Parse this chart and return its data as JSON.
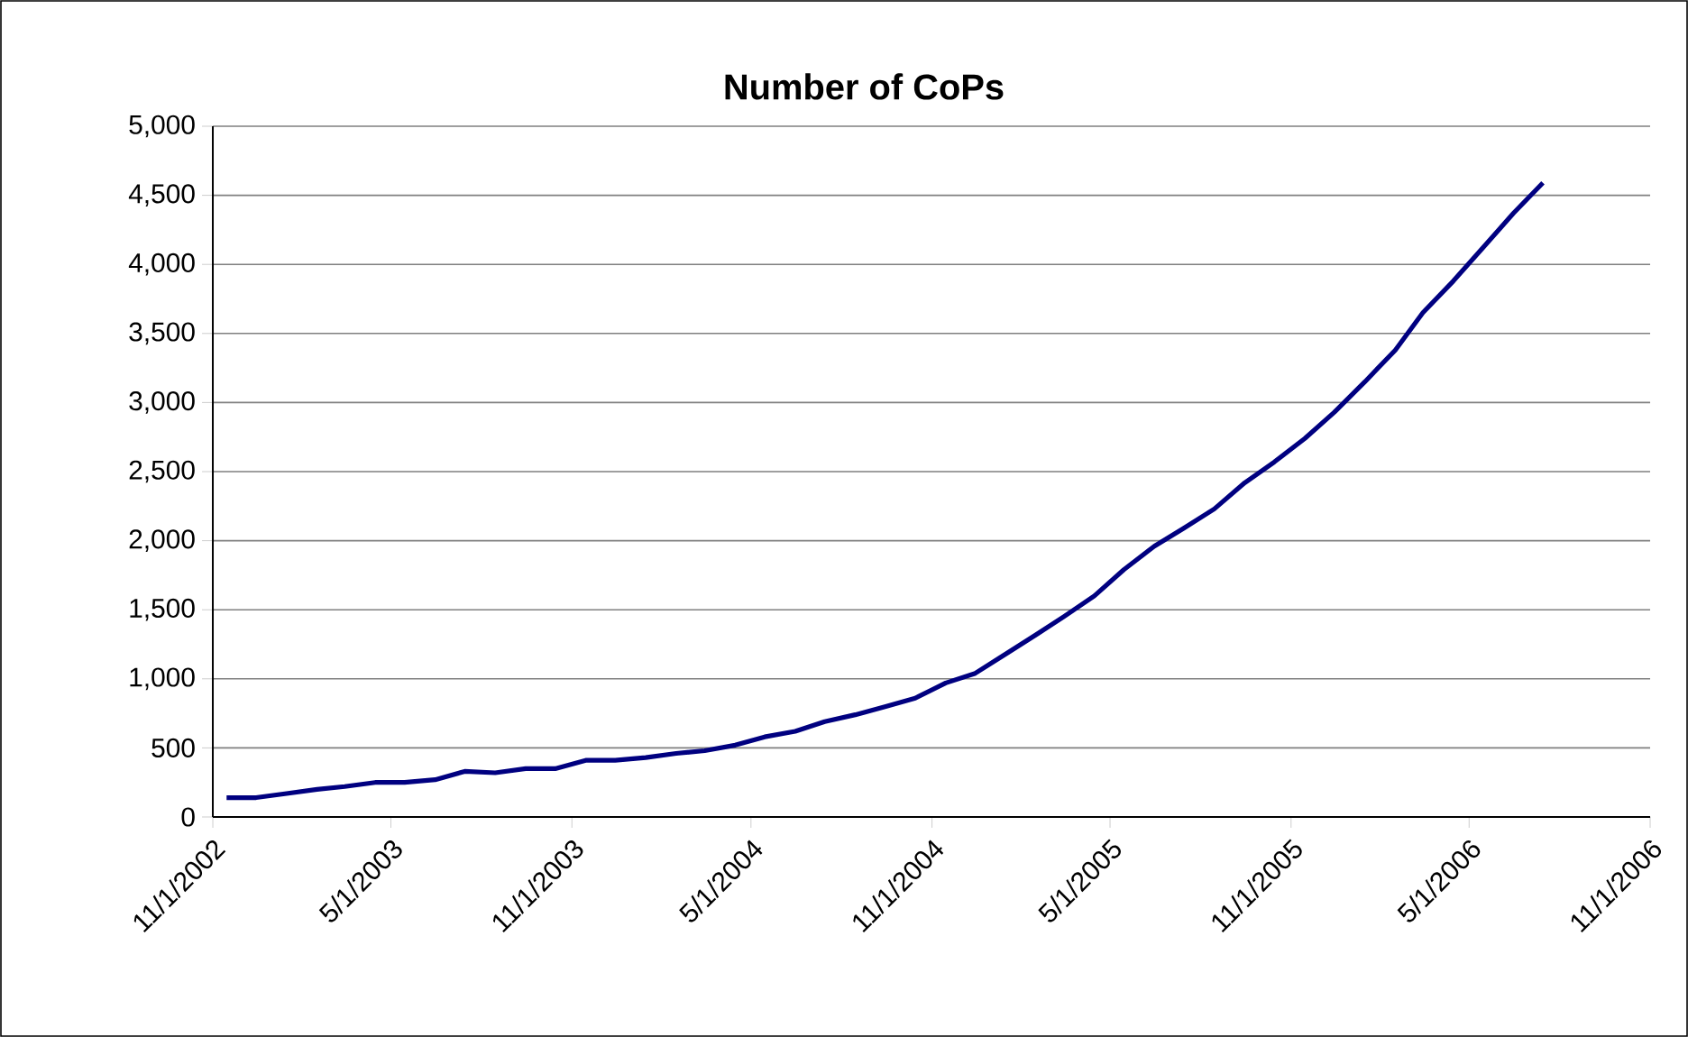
{
  "chart_data": {
    "type": "line",
    "title": "Number of CoPs",
    "x": [
      "2002-11-15",
      "2002-12-15",
      "2003-01-15",
      "2003-02-15",
      "2003-03-15",
      "2003-04-15",
      "2003-05-15",
      "2003-06-15",
      "2003-07-15",
      "2003-08-15",
      "2003-09-15",
      "2003-10-15",
      "2003-11-15",
      "2003-12-15",
      "2004-01-15",
      "2004-02-15",
      "2004-03-15",
      "2004-04-15",
      "2004-05-15",
      "2004-06-15",
      "2004-07-15",
      "2004-08-15",
      "2004-09-15",
      "2004-10-15",
      "2004-11-15",
      "2004-12-15",
      "2005-01-15",
      "2005-02-15",
      "2005-03-15",
      "2005-04-15",
      "2005-05-15",
      "2005-06-15",
      "2005-07-15",
      "2005-08-15",
      "2005-09-15",
      "2005-10-15",
      "2005-11-15",
      "2005-12-15",
      "2006-01-15",
      "2006-02-15",
      "2006-03-15",
      "2006-04-15",
      "2006-05-15",
      "2006-06-15",
      "2006-07-15"
    ],
    "series": [
      {
        "color": "#000080",
        "values": [
          140,
          140,
          170,
          200,
          220,
          250,
          250,
          270,
          330,
          320,
          350,
          350,
          410,
          410,
          430,
          460,
          480,
          520,
          580,
          620,
          690,
          740,
          800,
          860,
          970,
          1040,
          1180,
          1320,
          1450,
          1600,
          1790,
          1960,
          2090,
          2230,
          2420,
          2570,
          2740,
          2930,
          3150,
          3380,
          3650,
          3880,
          4120,
          4370,
          4590
        ]
      }
    ],
    "xlim": [
      "2002-11-01",
      "2006-11-01"
    ],
    "xticks": [
      {
        "value": "2002-11-01",
        "label": "11/1/2002"
      },
      {
        "value": "2003-05-01",
        "label": "5/1/2003"
      },
      {
        "value": "2003-11-01",
        "label": "11/1/2003"
      },
      {
        "value": "2004-05-01",
        "label": "5/1/2004"
      },
      {
        "value": "2004-11-01",
        "label": "11/1/2004"
      },
      {
        "value": "2005-05-01",
        "label": "5/1/2005"
      },
      {
        "value": "2005-11-01",
        "label": "11/1/2005"
      },
      {
        "value": "2006-05-01",
        "label": "5/1/2006"
      },
      {
        "value": "2006-11-01",
        "label": "11/1/2006"
      }
    ],
    "ylim": [
      0,
      5000
    ],
    "yticks": [
      0,
      {
        "value": 500,
        "label": "500"
      },
      {
        "value": 1000,
        "label": "1,000"
      },
      {
        "value": 1500,
        "label": "1,500"
      },
      {
        "value": 2000,
        "label": "2,000"
      },
      {
        "value": 2500,
        "label": "2,500"
      },
      {
        "value": 3000,
        "label": "3,000"
      },
      {
        "value": 3500,
        "label": "3,500"
      },
      {
        "value": 4000,
        "label": "4,000"
      },
      {
        "value": 4500,
        "label": "4,500"
      },
      {
        "value": 5000,
        "label": "5,000"
      }
    ],
    "grid": "y",
    "legend": false,
    "marker": "none",
    "line_style": "solid"
  }
}
